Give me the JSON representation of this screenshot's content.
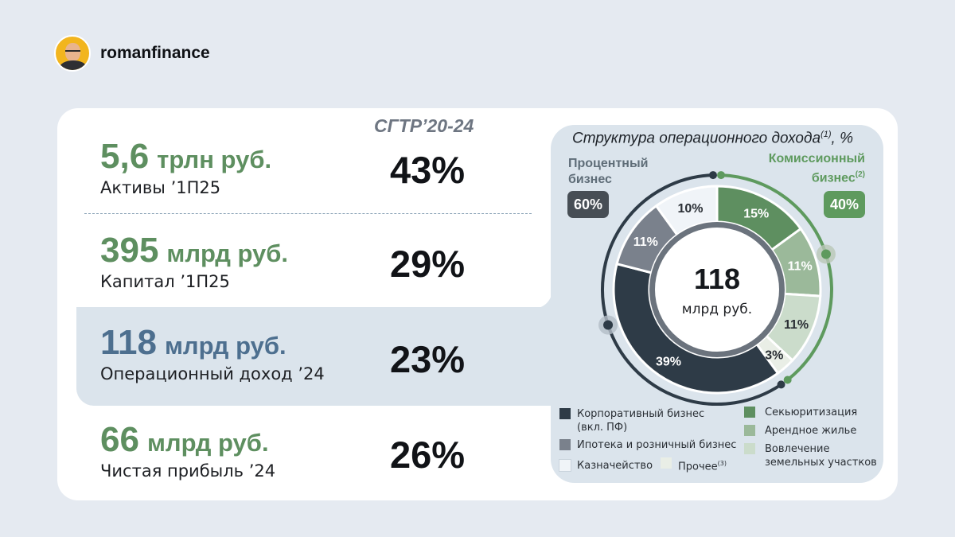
{
  "header": {
    "brand": "romanfinance"
  },
  "metrics": {
    "cagr_title": "CГТР’20-24",
    "items": [
      {
        "value": "5,6",
        "unit": "трлн руб.",
        "label": "Активы ’1П25",
        "cagr": "43%"
      },
      {
        "value": "395",
        "unit": "млрд руб.",
        "label": "Капитал ’1П25",
        "cagr": "29%"
      },
      {
        "value": "118",
        "unit": "млрд руб.",
        "label": "Операционный доход ’24",
        "cagr": "23%"
      },
      {
        "value": "66",
        "unit": "млрд руб.",
        "label": "Чистая прибыль ’24",
        "cagr": "26%"
      }
    ]
  },
  "panel": {
    "title": "Структура операционного дохода",
    "title_sup": "(1)",
    "title_suffix": ", %",
    "interest_label_1": "Процентный",
    "interest_label_2": "бизнес",
    "interest_share": "60%",
    "commission_label_1": "Комиссионный",
    "commission_label_2": "бизнес",
    "commission_sup": "(2)",
    "commission_share": "40%",
    "center_value": "118",
    "center_unit": "млрд руб."
  },
  "chart_data": {
    "type": "pie",
    "title": "Структура операционного дохода",
    "total": 118,
    "total_unit": "млрд руб.",
    "slices": [
      {
        "name": "Секьюритизация",
        "value": 15,
        "label": "15%",
        "color": "#5e8f60"
      },
      {
        "name": "Арендное жилье",
        "value": 11,
        "label": "11%",
        "color": "#9bb99a"
      },
      {
        "name": "Вовлечение земельных участков",
        "value": 11,
        "label": "11%",
        "color": "#cbdccb"
      },
      {
        "name": "Прочее",
        "value": 3,
        "label": "3%",
        "color": "#e9eee6"
      },
      {
        "name": "Корпоративный бизнес (вкл. ПФ)",
        "value": 39,
        "label": "39%",
        "color": "#2e3b47"
      },
      {
        "name": "Ипотека и розничный бизнес",
        "value": 11,
        "label": "11%",
        "color": "#7a818c"
      },
      {
        "name": "Казначейство",
        "value": 10,
        "label": "10%",
        "color": "#f0f4f8"
      }
    ],
    "groups": [
      {
        "name": "Процентный бизнес",
        "value": 60
      },
      {
        "name": "Комиссионный бизнес",
        "value": 40
      }
    ],
    "legend": "bottom"
  },
  "legend": {
    "corporate_1": "Корпоративный бизнес",
    "corporate_2": "(вкл. ПФ)",
    "mortgage": "Ипотека и розничный бизнес",
    "treasury": "Казначейство",
    "other": "Прочее",
    "other_sup": "(3)",
    "securitization": "Секьюритизация",
    "rental": "Арендное жилье",
    "land_1": "Вовлечение",
    "land_2": "земельных участков"
  }
}
